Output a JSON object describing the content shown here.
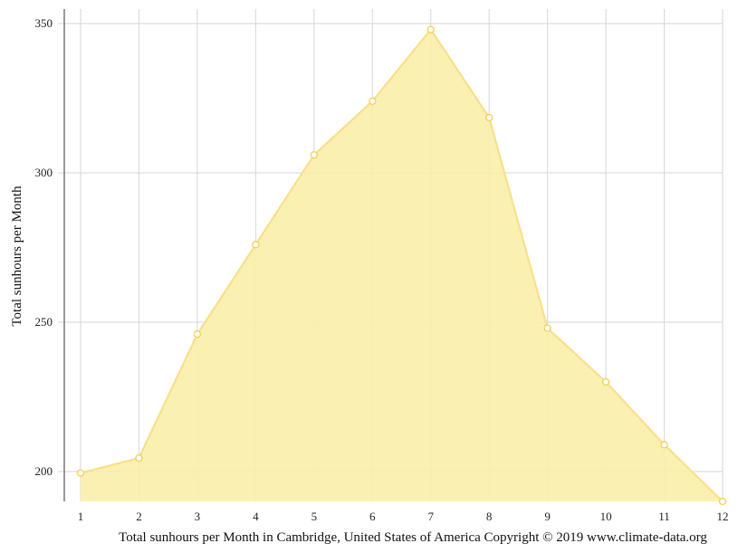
{
  "chart_data": {
    "type": "area",
    "x": [
      1,
      2,
      3,
      4,
      5,
      6,
      7,
      8,
      9,
      10,
      11,
      12
    ],
    "x_tick_labels": [
      "1",
      "2",
      "3",
      "4",
      "5",
      "6",
      "7",
      "8",
      "9",
      "10",
      "11",
      "12"
    ],
    "series": [
      {
        "values": [
          199.5,
          204.5,
          246,
          276,
          306,
          324,
          348,
          318.5,
          248,
          230,
          209,
          190
        ]
      }
    ],
    "ylabel": "Total sunhours per Month",
    "xlabel": "Total sunhours per Month in Cambridge, United States of America Copyright © 2019 www.climate-data.org",
    "y_ticks": [
      200,
      250,
      300,
      350
    ],
    "y_tick_labels": [
      "200",
      "250",
      "300",
      "350"
    ],
    "xlim": [
      1,
      12
    ],
    "ylim": [
      190,
      350
    ],
    "grid": true,
    "colors": {
      "fill": "#faeeaa",
      "line": "#f8e08a",
      "marker_fill": "#ffffff",
      "marker_stroke": "#f2cf55",
      "grid": "#d6d6d6",
      "axis": "#555555"
    }
  }
}
